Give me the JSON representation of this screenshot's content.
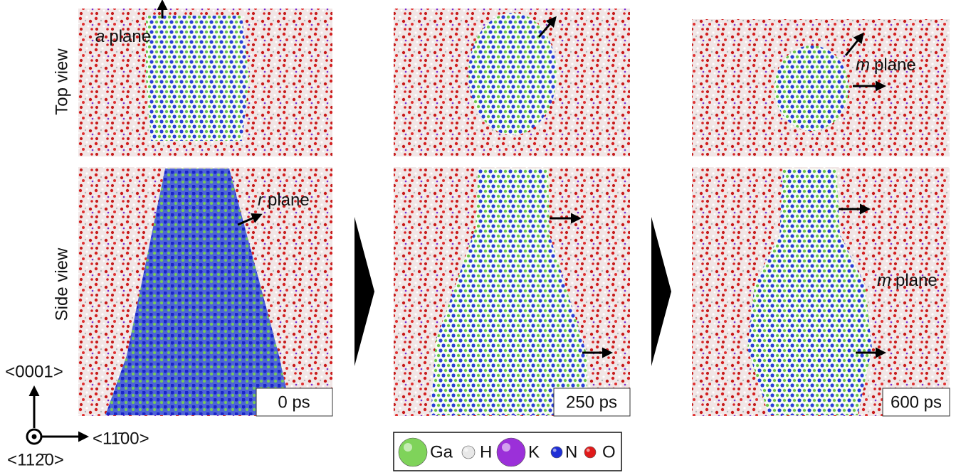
{
  "row_labels": [
    "Top view",
    "Side view"
  ],
  "annotations": [
    {
      "italic": "a",
      "rest": "plane"
    },
    {
      "italic": "r",
      "rest": "plane"
    },
    {
      "italic": "m",
      "rest": "plane"
    },
    {
      "italic": "m",
      "rest": "plane"
    }
  ],
  "times": [
    "0 ps",
    "250 ps",
    "600 ps"
  ],
  "axes": {
    "up": "<0001>",
    "right": "<11̄00>",
    "out": "<112̄0>"
  },
  "legend": [
    {
      "name": "Ga",
      "color": "#7fd35a"
    },
    {
      "name": "H",
      "color": "#e8e8e8"
    },
    {
      "name": "K",
      "color": "#9b30d9"
    },
    {
      "name": "N",
      "color": "#1f2fd6"
    },
    {
      "name": "O",
      "color": "#e01a1a"
    }
  ]
}
